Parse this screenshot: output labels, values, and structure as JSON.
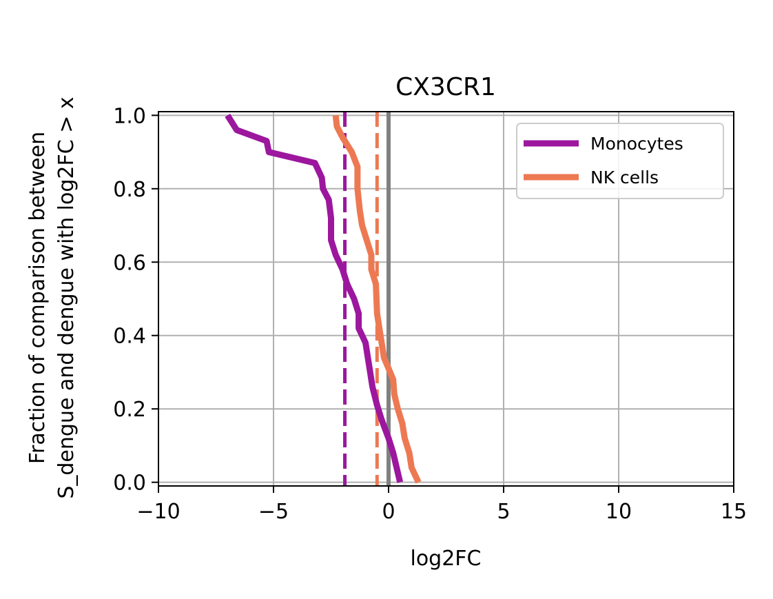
{
  "chart_data": {
    "type": "line",
    "title": "CX3CR1",
    "xlabel": "log2FC",
    "ylabel": [
      "Fraction of comparison between",
      "S_dengue and dengue with log2FC > x"
    ],
    "xlim": [
      -10,
      15
    ],
    "ylim": [
      -0.01,
      1.01
    ],
    "xticks": [
      -10,
      -5,
      0,
      5,
      10,
      15
    ],
    "xtick_labels": [
      "−10",
      "−5",
      "0",
      "5",
      "10",
      "15"
    ],
    "yticks": [
      0.0,
      0.2,
      0.4,
      0.6,
      0.8,
      1.0
    ],
    "ytick_labels": [
      "0.0",
      "0.2",
      "0.4",
      "0.6",
      "0.8",
      "1.0"
    ],
    "grid": true,
    "legend_position": "top-right",
    "series": [
      {
        "name": "Monocytes",
        "color": "#9c179e",
        "style": "solid",
        "x": [
          -7.0,
          -6.6,
          -5.3,
          -5.2,
          -3.2,
          -2.9,
          -2.85,
          -2.6,
          -2.5,
          -2.5,
          -2.3,
          -2.0,
          -1.8,
          -1.5,
          -1.3,
          -1.3,
          -1.0,
          -0.9,
          -0.8,
          -0.7,
          -0.5,
          -0.3,
          0.0,
          0.2,
          0.5
        ],
        "y": [
          1.0,
          0.96,
          0.93,
          0.9,
          0.87,
          0.83,
          0.8,
          0.77,
          0.72,
          0.66,
          0.62,
          0.58,
          0.54,
          0.5,
          0.46,
          0.42,
          0.38,
          0.34,
          0.3,
          0.26,
          0.21,
          0.17,
          0.12,
          0.08,
          0.0
        ]
      },
      {
        "name": "NK cells",
        "color": "#ed7953",
        "style": "solid",
        "x": [
          -2.3,
          -2.25,
          -2.0,
          -1.6,
          -1.35,
          -1.35,
          -1.25,
          -1.15,
          -0.95,
          -0.75,
          -0.75,
          -0.55,
          -0.5,
          -0.4,
          -0.3,
          -0.2,
          0.0,
          0.2,
          0.25,
          0.4,
          0.6,
          0.7,
          0.9,
          1.0,
          1.3
        ],
        "y": [
          1.0,
          0.97,
          0.94,
          0.9,
          0.86,
          0.8,
          0.74,
          0.7,
          0.66,
          0.62,
          0.58,
          0.54,
          0.46,
          0.42,
          0.38,
          0.34,
          0.31,
          0.28,
          0.24,
          0.2,
          0.16,
          0.12,
          0.08,
          0.04,
          0.0
        ]
      }
    ],
    "vlines": [
      {
        "x": -1.9,
        "color": "#9c179e",
        "style": "dashed"
      },
      {
        "x": -0.5,
        "color": "#ed7953",
        "style": "dashed"
      },
      {
        "x": 0.0,
        "color": "#808080",
        "style": "solid"
      }
    ]
  }
}
